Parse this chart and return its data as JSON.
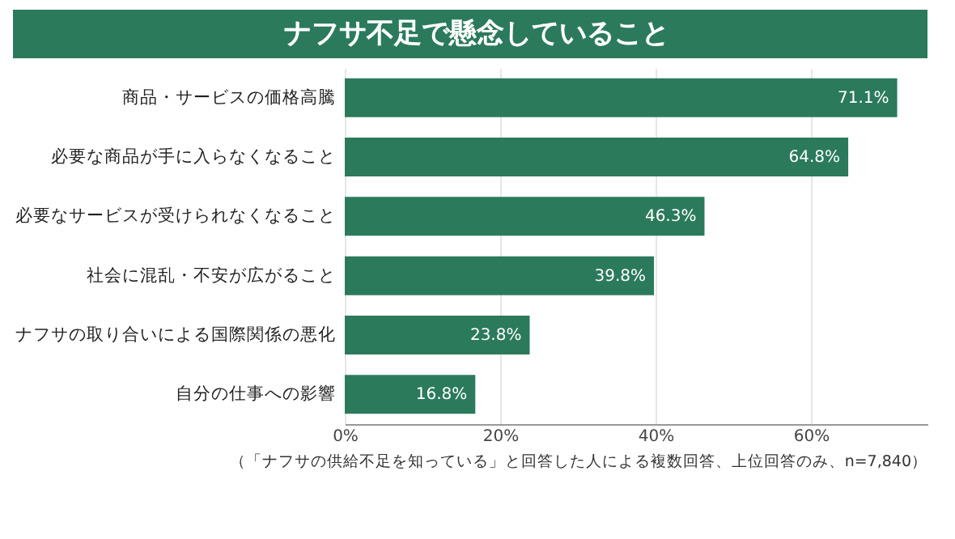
{
  "chart_data": {
    "type": "bar",
    "orientation": "horizontal",
    "title": "ナフサ不足で懸念していること",
    "categories": [
      "商品・サービスの価格高騰",
      "必要な商品が手に入らなくなること",
      "必要なサービスが受けられなくなること",
      "社会に混乱・不安が広がること",
      "ナフサの取り合いによる国際関係の悪化",
      "自分の仕事への影響"
    ],
    "values": [
      71.1,
      64.8,
      46.3,
      39.8,
      23.8,
      16.8
    ],
    "value_labels": [
      "71.1%",
      "64.8%",
      "46.3%",
      "39.8%",
      "23.8%",
      "16.8%"
    ],
    "color": "#2b7a5b",
    "xlim": [
      0,
      75
    ],
    "xticks": [
      {
        "value": 0,
        "label": "0%"
      },
      {
        "value": 20,
        "label": "20%"
      },
      {
        "value": 40,
        "label": "40%"
      },
      {
        "value": 60,
        "label": "60%"
      }
    ],
    "grid": "x",
    "annotations": [
      "（「ナフサの供給不足を知っている」と回答した人による複数回答、上位回答のみ、n=7,840）"
    ]
  }
}
